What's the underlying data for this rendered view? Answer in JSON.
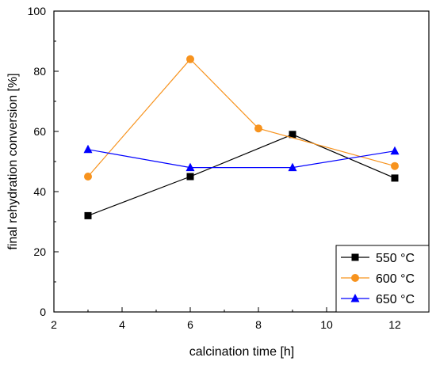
{
  "chart_data": {
    "type": "line",
    "xlabel": "calcination time [h]",
    "ylabel": "final rehydration conversion [%]",
    "xlim": [
      2,
      13
    ],
    "ylim": [
      0,
      100
    ],
    "xticks": [
      2,
      4,
      6,
      8,
      10,
      12
    ],
    "yticks": [
      0,
      20,
      40,
      60,
      80,
      100
    ],
    "grid": false,
    "legend_position": "bottom-right",
    "series": [
      {
        "name": "550 °C",
        "color": "#000000",
        "marker": "square",
        "x": [
          3,
          6,
          9,
          12
        ],
        "y": [
          32,
          45,
          59,
          44.5
        ]
      },
      {
        "name": "600 °C",
        "color": "#f7931e",
        "marker": "circle",
        "x": [
          3,
          6,
          8,
          12
        ],
        "y": [
          45,
          84,
          61,
          48.5
        ]
      },
      {
        "name": "650 °C",
        "color": "#0000ff",
        "marker": "triangle",
        "x": [
          3,
          6,
          9,
          12
        ],
        "y": [
          54,
          48,
          48,
          53.5
        ]
      }
    ]
  }
}
